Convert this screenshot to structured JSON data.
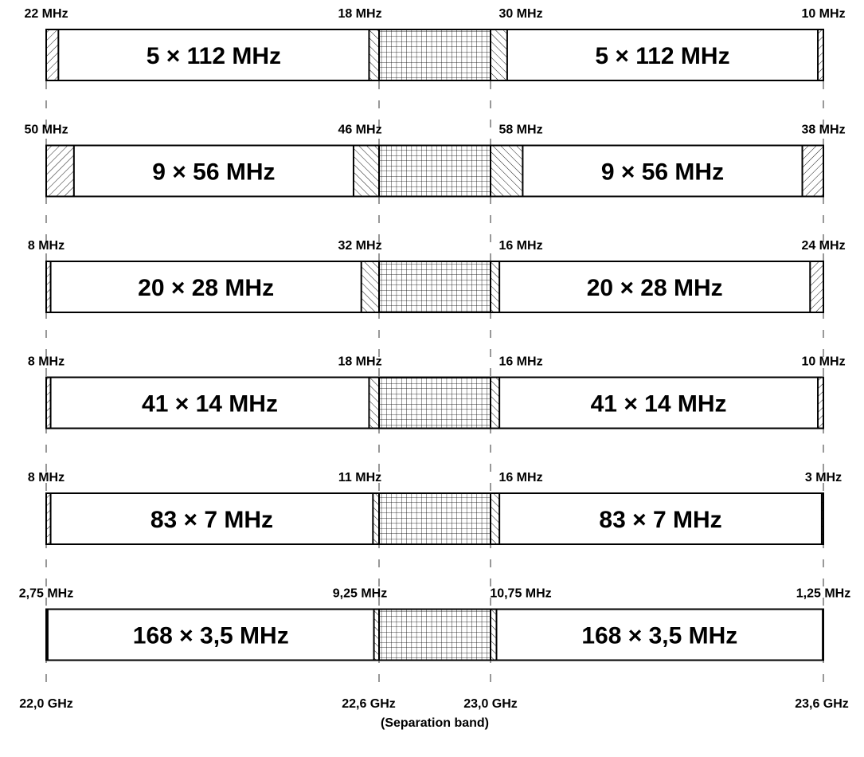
{
  "rows": [
    {
      "guards": [
        "22 MHz",
        "18 MHz",
        "30 MHz",
        "10 MHz"
      ],
      "channel_label": "5 × 112 MHz",
      "guard_mhz": [
        22,
        18,
        30,
        10
      ]
    },
    {
      "guards": [
        "50 MHz",
        "46 MHz",
        "58 MHz",
        "38 MHz"
      ],
      "channel_label": "9 × 56 MHz",
      "guard_mhz": [
        50,
        46,
        58,
        38
      ]
    },
    {
      "guards": [
        "8 MHz",
        "32 MHz",
        "16 MHz",
        "24 MHz"
      ],
      "channel_label": "20 × 28 MHz",
      "guard_mhz": [
        8,
        32,
        16,
        24
      ]
    },
    {
      "guards": [
        "8 MHz",
        "18 MHz",
        "16 MHz",
        "10 MHz"
      ],
      "channel_label": "41 × 14 MHz",
      "guard_mhz": [
        8,
        18,
        16,
        10
      ]
    },
    {
      "guards": [
        "8 MHz",
        "11 MHz",
        "16 MHz",
        "3 MHz"
      ],
      "channel_label": "83 × 7 MHz",
      "guard_mhz": [
        8,
        11,
        16,
        3
      ]
    },
    {
      "guards": [
        "2,75 MHz",
        "9,25 MHz",
        "10,75 MHz",
        "1,25 MHz"
      ],
      "channel_label": "168 × 3,5 MHz",
      "guard_mhz": [
        2.75,
        9.25,
        10.75,
        1.25
      ]
    }
  ],
  "axis": {
    "ticks": [
      "22,0 GHz",
      "22,6 GHz",
      "23,0 GHz",
      "23,6 GHz"
    ],
    "separation_label": "(Separation band)"
  },
  "colors": {
    "stroke": "#000000",
    "fill": "#ffffff"
  }
}
